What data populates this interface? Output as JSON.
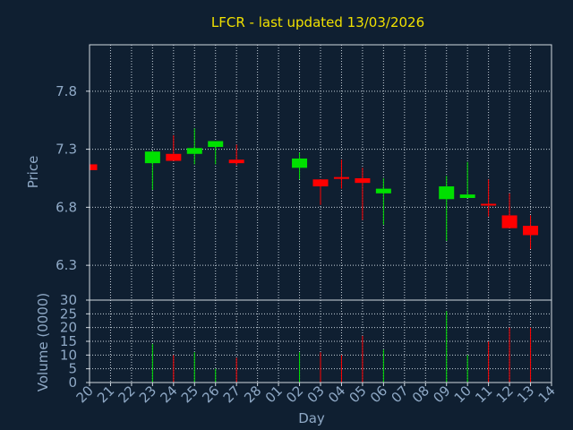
{
  "chart_data": [
    {
      "type": "candlestick",
      "title": "LFCR - last updated 13/03/2026",
      "xlabel": "Day",
      "ylabel": "Price",
      "yticks": [
        6.3,
        6.8,
        7.3,
        7.8
      ],
      "ylim": [
        6.0,
        8.2
      ],
      "x_tick_labels": [
        "20",
        "21",
        "22",
        "23",
        "24",
        "25",
        "26",
        "27",
        "28",
        "01",
        "02",
        "03",
        "04",
        "05",
        "06",
        "07",
        "08",
        "09",
        "10",
        "11",
        "12",
        "13",
        "14"
      ],
      "grid": true,
      "colors": {
        "up": "#00e000",
        "down": "#ff0000",
        "title": "#f0e000",
        "axis_text": "#8fa9c6",
        "background": "#0f1f31"
      },
      "candles": [
        {
          "day": "20",
          "open": 7.17,
          "close": 7.12,
          "high": 7.17,
          "low": 7.12
        },
        {
          "day": "23",
          "open": 7.18,
          "close": 7.28,
          "high": 7.29,
          "low": 6.95
        },
        {
          "day": "24",
          "open": 7.26,
          "close": 7.2,
          "high": 7.42,
          "low": 7.2
        },
        {
          "day": "25",
          "open": 7.26,
          "close": 7.31,
          "high": 7.48,
          "low": 7.17
        },
        {
          "day": "26",
          "open": 7.32,
          "close": 7.37,
          "high": 7.37,
          "low": 7.17
        },
        {
          "day": "27",
          "open": 7.21,
          "close": 7.18,
          "high": 7.34,
          "low": 7.16
        },
        {
          "day": "02",
          "open": 7.14,
          "close": 7.22,
          "high": 7.27,
          "low": 7.04
        },
        {
          "day": "03",
          "open": 7.04,
          "close": 6.98,
          "high": 7.04,
          "low": 6.82
        },
        {
          "day": "04",
          "open": 7.06,
          "close": 7.05,
          "high": 7.21,
          "low": 6.96
        },
        {
          "day": "05",
          "open": 7.05,
          "close": 7.01,
          "high": 7.14,
          "low": 6.69
        },
        {
          "day": "06",
          "open": 6.92,
          "close": 6.96,
          "high": 7.05,
          "low": 6.65
        },
        {
          "day": "09",
          "open": 6.87,
          "close": 6.98,
          "high": 7.07,
          "low": 6.51
        },
        {
          "day": "10",
          "open": 6.88,
          "close": 6.91,
          "high": 7.19,
          "low": 6.88
        },
        {
          "day": "11",
          "open": 6.83,
          "close": 6.82,
          "high": 7.04,
          "low": 6.72
        },
        {
          "day": "12",
          "open": 6.73,
          "close": 6.62,
          "high": 6.92,
          "low": 6.62
        },
        {
          "day": "13",
          "open": 6.64,
          "close": 6.56,
          "high": 6.73,
          "low": 6.44
        }
      ]
    },
    {
      "type": "bar",
      "xlabel": "Day",
      "ylabel": "Volume (0000)",
      "yticks": [
        0,
        5,
        10,
        15,
        20,
        25,
        30
      ],
      "ylim": [
        0,
        30
      ],
      "categories": [
        "23",
        "24",
        "25",
        "26",
        "27",
        "02",
        "03",
        "04",
        "05",
        "06",
        "09",
        "10",
        "11",
        "12",
        "13"
      ],
      "values": [
        14,
        10,
        11,
        5,
        9,
        11,
        11,
        10,
        17,
        12,
        26,
        10,
        15,
        20,
        20
      ],
      "bar_colors": [
        "#00e000",
        "#ff0000",
        "#00e000",
        "#00e000",
        "#ff0000",
        "#00e000",
        "#ff0000",
        "#ff0000",
        "#ff0000",
        "#00e000",
        "#00e000",
        "#00e000",
        "#ff0000",
        "#ff0000",
        "#ff0000"
      ]
    }
  ]
}
